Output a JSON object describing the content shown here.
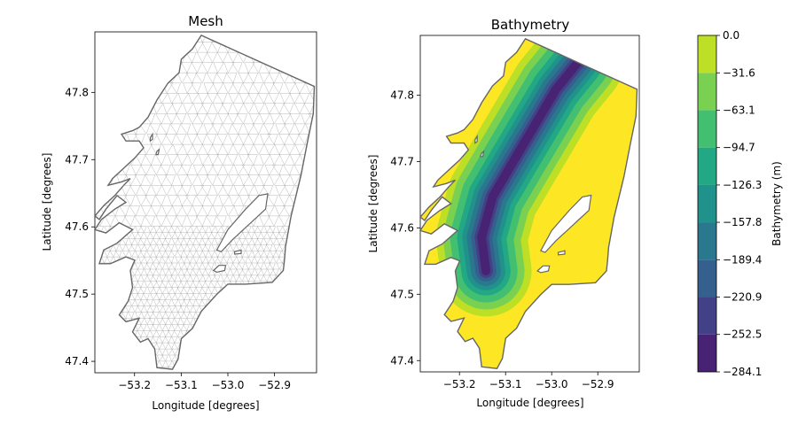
{
  "chart_data": [
    {
      "type": "mesh",
      "title": "Mesh",
      "xlabel": "Longitude [degrees]",
      "ylabel": "Latitude [degrees]",
      "xlim": [
        -53.285,
        -52.81
      ],
      "ylim": [
        47.383,
        47.89
      ],
      "xticks": [
        -53.2,
        -53.1,
        -53.0,
        -52.9
      ],
      "xtick_labels": [
        "−53.2",
        "−53.1",
        "−53.0",
        "−52.9"
      ],
      "yticks": [
        47.4,
        47.5,
        47.6,
        47.7,
        47.8
      ],
      "ytick_labels": [
        "47.4",
        "47.5",
        "47.6",
        "47.7",
        "47.8"
      ],
      "mesh_color": "#999999",
      "outline_color": "#666666"
    },
    {
      "type": "contourf",
      "title": "Bathymetry",
      "xlabel": "Longitude [degrees]",
      "ylabel": "Latitude [degrees]",
      "xlim": [
        -53.285,
        -52.81
      ],
      "ylim": [
        47.383,
        47.89
      ],
      "xticks": [
        -53.2,
        -53.1,
        -53.0,
        -52.9
      ],
      "xtick_labels": [
        "−53.2",
        "−53.1",
        "−53.0",
        "−52.9"
      ],
      "yticks": [
        47.4,
        47.5,
        47.6,
        47.7,
        47.8
      ],
      "ytick_labels": [
        "47.4",
        "47.5",
        "47.6",
        "47.7",
        "47.8"
      ],
      "colormap": "viridis",
      "colorbar": {
        "label": "Bathymetry (m)",
        "range": [
          -284.1,
          0.0
        ],
        "levels": [
          -284.1,
          -252.5,
          -220.9,
          -189.4,
          -157.8,
          -126.3,
          -94.7,
          -63.1,
          -31.6,
          0.0
        ],
        "tick_labels": [
          "−284.1",
          "−252.5",
          "−220.9",
          "−189.4",
          "−157.8",
          "−126.3",
          "−94.7",
          "−63.1",
          "−31.6",
          "0.0"
        ],
        "colors": [
          "#482374",
          "#424086",
          "#35608d",
          "#2a788e",
          "#21918c",
          "#22a884",
          "#43bf71",
          "#7ad151",
          "#bddf26",
          "#fde725"
        ]
      }
    }
  ]
}
